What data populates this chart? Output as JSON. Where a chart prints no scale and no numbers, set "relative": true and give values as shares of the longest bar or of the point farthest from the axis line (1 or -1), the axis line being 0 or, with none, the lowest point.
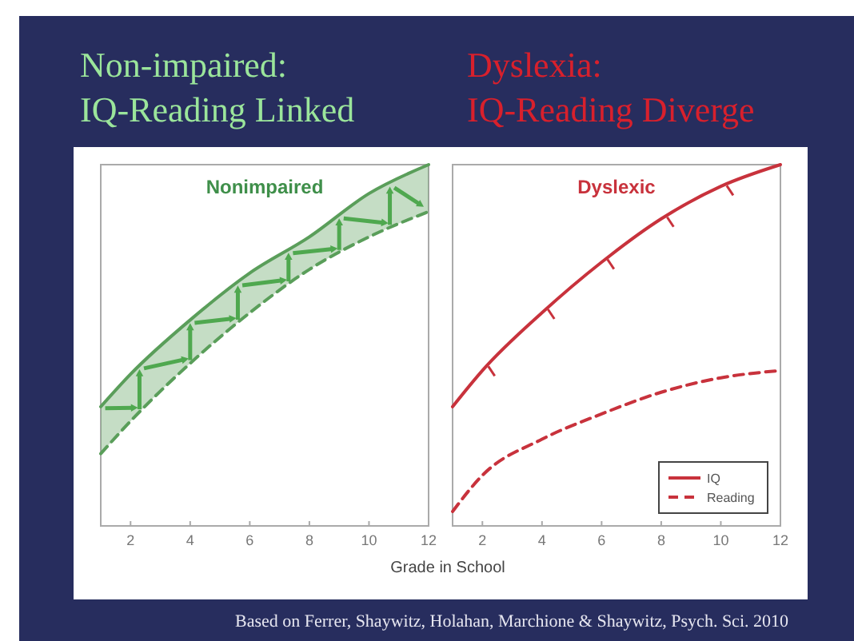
{
  "chart_data": [
    {
      "type": "line",
      "title": "Non-impaired:",
      "subtitle": "IQ-Reading Linked",
      "annotations": [
        "Nonimpaired"
      ],
      "xlabel": "Grade in School",
      "relative": true,
      "xlim": [
        1,
        12
      ],
      "xticks": [
        2,
        4,
        6,
        8,
        10,
        12
      ],
      "x": [
        1,
        2,
        4,
        6,
        8,
        10,
        12
      ],
      "series": [
        {
          "color": "#5a9e5a",
          "line_style": "solid",
          "values": [
            0.33,
            0.42,
            0.57,
            0.7,
            0.8,
            0.92,
            1.0
          ],
          "lower": [
            0.2,
            0.29,
            0.45,
            0.59,
            0.71,
            0.8,
            0.87
          ],
          "upper": [
            0.33,
            0.42,
            0.57,
            0.7,
            0.8,
            0.92,
            1.0
          ]
        },
        {
          "color": "#5a9e5a",
          "line_style": "dashed",
          "values": [
            0.2,
            0.29,
            0.45,
            0.59,
            0.71,
            0.8,
            0.87
          ]
        }
      ]
    },
    {
      "type": "line",
      "title": "Dyslexia:",
      "subtitle": "IQ-Reading Diverge",
      "annotations": [
        "Dyslexic",
        "Based on Ferrer, Shaywitz, Holahan, Marchione & Shaywitz, Psych. Sci. 2010"
      ],
      "relative": true,
      "xlim": [
        1,
        12
      ],
      "xticks": [
        2,
        4,
        6,
        8,
        10,
        12
      ],
      "x": [
        1,
        2,
        4,
        6,
        8,
        10,
        12
      ],
      "legend": "bottom right",
      "series": [
        {
          "name": "IQ",
          "color": "#c8323c",
          "line_style": "solid",
          "values": [
            0.33,
            0.43,
            0.59,
            0.73,
            0.85,
            0.94,
            1.0
          ]
        },
        {
          "name": "Reading",
          "color": "#c8323c",
          "line_style": "dashed",
          "values": [
            0.04,
            0.14,
            0.24,
            0.31,
            0.37,
            0.41,
            0.43
          ]
        }
      ]
    }
  ]
}
